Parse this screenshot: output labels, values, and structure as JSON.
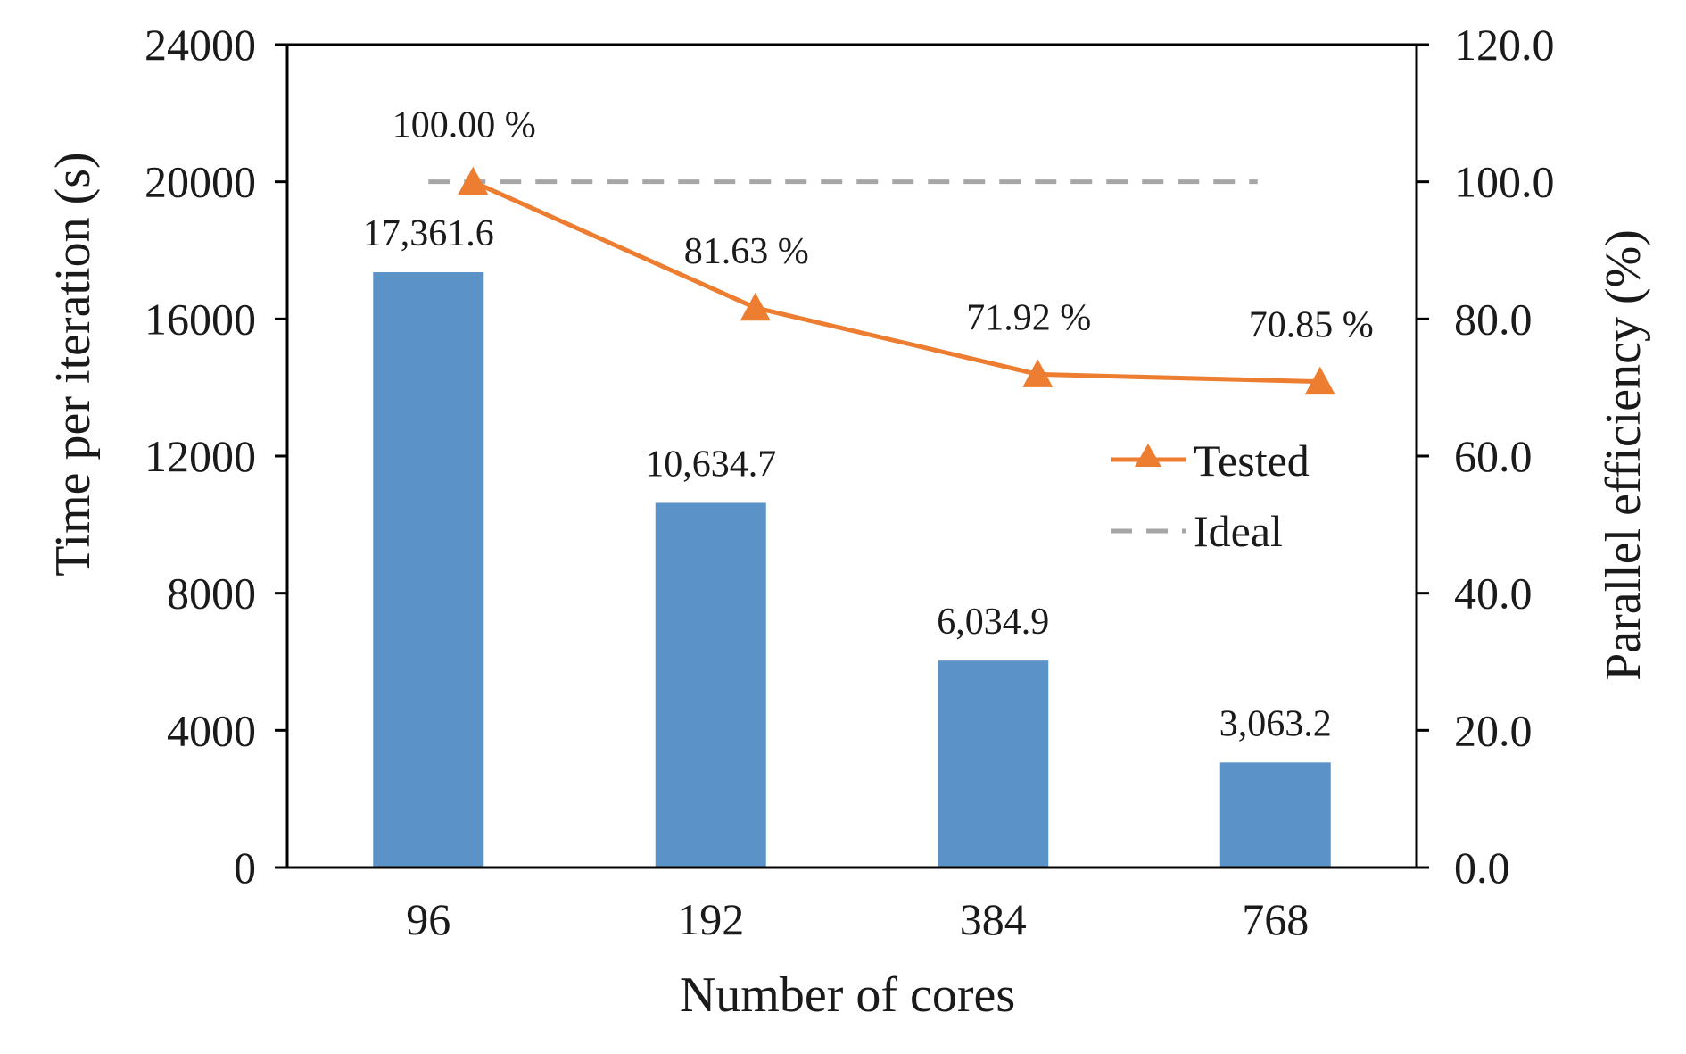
{
  "chart_data": {
    "type": "bar",
    "xlabel": "Number of cores",
    "ylabel": "Time per iteration (s)",
    "y2label": "Parallel efficiency (%)",
    "categories": [
      "96",
      "192",
      "384",
      "768"
    ],
    "ylim": [
      0,
      24000
    ],
    "y2lim": [
      0,
      120
    ],
    "yticks": [
      "0",
      "4000",
      "8000",
      "12000",
      "16000",
      "20000",
      "24000"
    ],
    "y2ticks": [
      "0.0",
      "20.0",
      "40.0",
      "60.0",
      "80.0",
      "100.0",
      "120.0"
    ],
    "bars": {
      "values": [
        17361.6,
        10634.7,
        6034.9,
        3063.2
      ],
      "labels": [
        "17,361.6",
        "10,634.7",
        "6,034.9",
        "3,063.2"
      ],
      "color": "#5b93c8"
    },
    "series": [
      {
        "name": "Tested",
        "axis": "y2",
        "values": [
          100.0,
          81.63,
          71.92,
          70.85
        ],
        "labels": [
          "100.00 %",
          "81.63 %",
          "71.92 %",
          "70.85 %"
        ],
        "color": "#ed7d31",
        "marker": "triangle"
      },
      {
        "name": "Ideal",
        "axis": "y2",
        "values": [
          100,
          100,
          100,
          100
        ],
        "color": "#a6a6a6",
        "style": "dashed"
      }
    ],
    "legend_position": "center-right",
    "grid": false
  }
}
